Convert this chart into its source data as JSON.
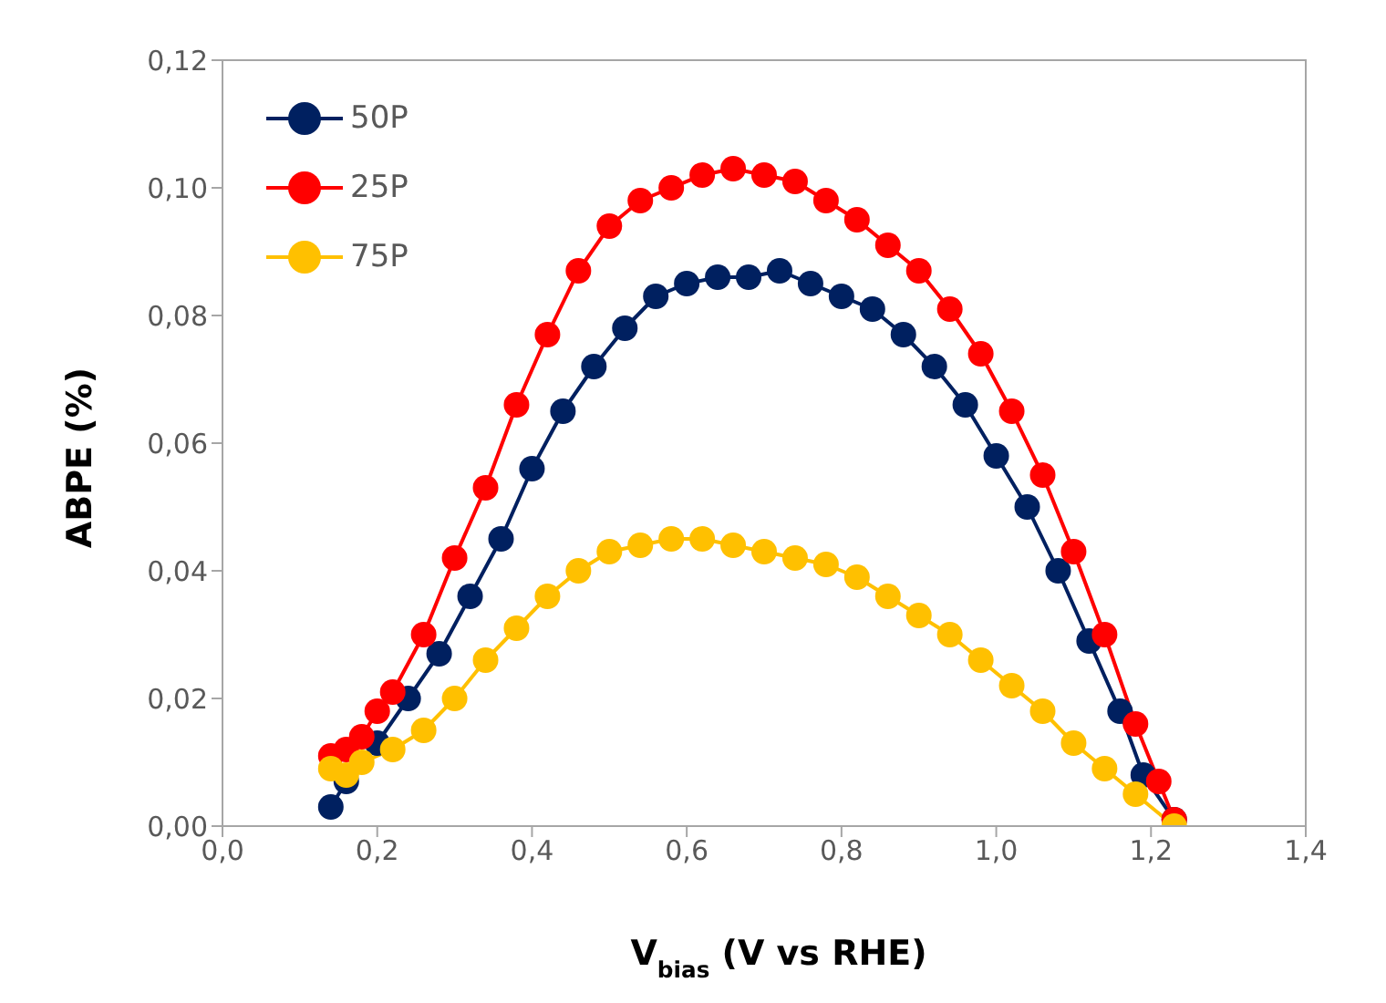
{
  "chart_data": {
    "type": "line",
    "xlabel": "V$_{bias}$ (V vs RHE)",
    "ylabel": "ABPE (%)",
    "marker": "circle",
    "legend": "top left",
    "xlim": [
      0,
      1.4
    ],
    "xticks": [
      {
        "value": 0,
        "label": "0,0"
      },
      {
        "value": 0.2,
        "label": "0,2"
      },
      {
        "value": 0.4,
        "label": "0,4"
      },
      {
        "value": 0.6,
        "label": "0,6"
      },
      {
        "value": 0.8,
        "label": "0,8"
      },
      {
        "value": 1,
        "label": "1,0"
      },
      {
        "value": 1.2,
        "label": "1,2"
      },
      {
        "value": 1.4,
        "label": "1,4"
      }
    ],
    "ylim": [
      0,
      0.12
    ],
    "yticks": [
      {
        "value": 0,
        "label": "0,00"
      },
      {
        "value": 0.02,
        "label": "0,02"
      },
      {
        "value": 0.04,
        "label": "0,04"
      },
      {
        "value": 0.06,
        "label": "0,06"
      },
      {
        "value": 0.08,
        "label": "0,08"
      },
      {
        "value": 0.1,
        "label": "0,10"
      },
      {
        "value": 0.12,
        "label": "0,12"
      }
    ],
    "series": [
      {
        "name": "50P",
        "color": "#002060",
        "x": [
          0.14,
          0.16,
          0.2,
          0.24,
          0.28,
          0.32,
          0.36,
          0.4,
          0.44,
          0.48,
          0.52,
          0.56,
          0.6,
          0.64,
          0.68,
          0.72,
          0.76,
          0.8,
          0.84,
          0.88,
          0.92,
          0.96,
          1.0,
          1.04,
          1.08,
          1.12,
          1.16,
          1.19,
          1.23
        ],
        "values": [
          0.003,
          0.007,
          0.013,
          0.02,
          0.027,
          0.036,
          0.045,
          0.056,
          0.065,
          0.072,
          0.078,
          0.083,
          0.085,
          0.086,
          0.086,
          0.087,
          0.085,
          0.083,
          0.081,
          0.077,
          0.072,
          0.066,
          0.058,
          0.05,
          0.04,
          0.029,
          0.018,
          0.008,
          0.001
        ]
      },
      {
        "name": "25P",
        "color": "#ff0000",
        "x": [
          0.14,
          0.16,
          0.18,
          0.2,
          0.22,
          0.26,
          0.3,
          0.34,
          0.38,
          0.42,
          0.46,
          0.5,
          0.54,
          0.58,
          0.62,
          0.66,
          0.7,
          0.74,
          0.78,
          0.82,
          0.86,
          0.9,
          0.94,
          0.98,
          1.02,
          1.06,
          1.1,
          1.14,
          1.18,
          1.21,
          1.23
        ],
        "values": [
          0.011,
          0.012,
          0.014,
          0.018,
          0.021,
          0.03,
          0.042,
          0.053,
          0.066,
          0.077,
          0.087,
          0.094,
          0.098,
          0.1,
          0.102,
          0.103,
          0.102,
          0.101,
          0.098,
          0.095,
          0.091,
          0.087,
          0.081,
          0.074,
          0.065,
          0.055,
          0.043,
          0.03,
          0.016,
          0.007,
          0.001
        ]
      },
      {
        "name": "75P",
        "color": "#ffc000",
        "x": [
          0.14,
          0.16,
          0.18,
          0.22,
          0.26,
          0.3,
          0.34,
          0.38,
          0.42,
          0.46,
          0.5,
          0.54,
          0.58,
          0.62,
          0.66,
          0.7,
          0.74,
          0.78,
          0.82,
          0.86,
          0.9,
          0.94,
          0.98,
          1.02,
          1.06,
          1.1,
          1.14,
          1.18,
          1.23
        ],
        "values": [
          0.009,
          0.008,
          0.01,
          0.012,
          0.015,
          0.02,
          0.026,
          0.031,
          0.036,
          0.04,
          0.043,
          0.044,
          0.045,
          0.045,
          0.044,
          0.043,
          0.042,
          0.041,
          0.039,
          0.036,
          0.033,
          0.03,
          0.026,
          0.022,
          0.018,
          0.013,
          0.009,
          0.005,
          0
        ]
      }
    ]
  }
}
